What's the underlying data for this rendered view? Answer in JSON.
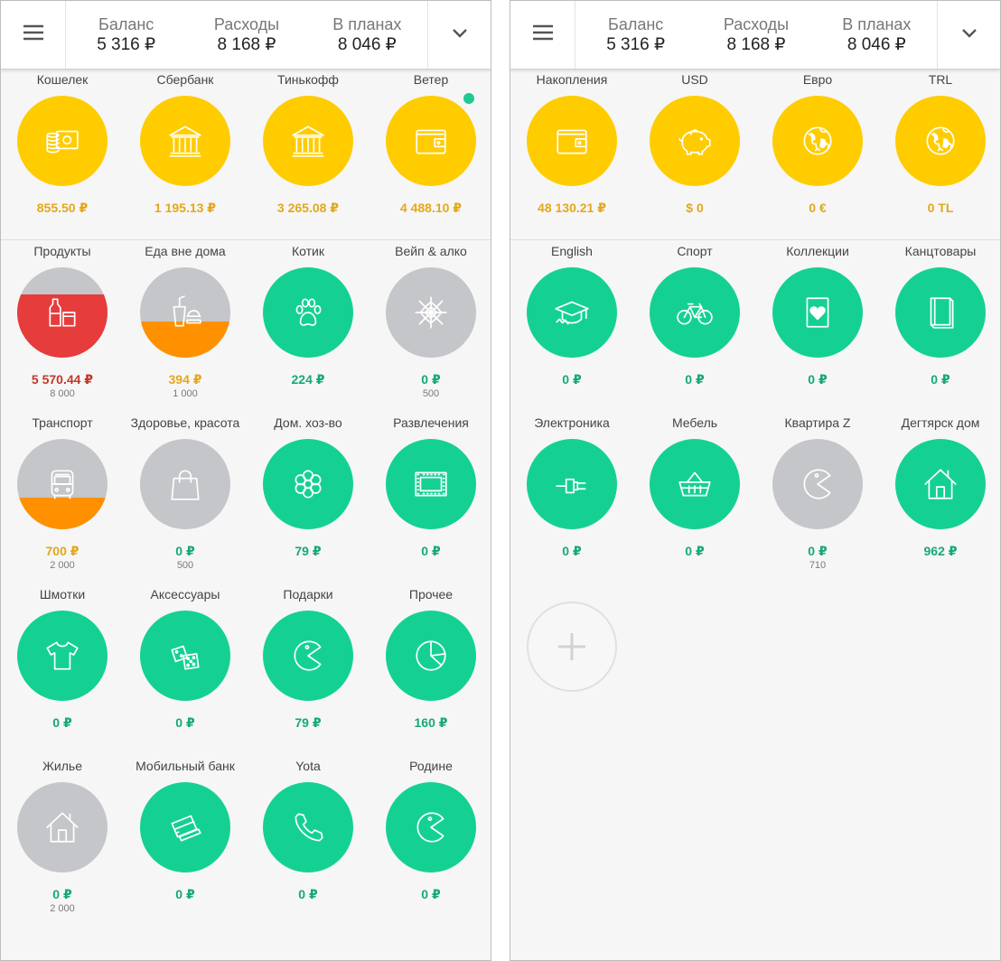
{
  "colors": {
    "yellow": "#ffcc00",
    "green": "#14d193",
    "gray": "#c4c6ca",
    "red": "#e63c3c",
    "orange": "#ff9000",
    "text_yellow": "#e3a81b",
    "text_green": "#16a879",
    "text_red": "#c0392b"
  },
  "screens": [
    {
      "header": {
        "stats": [
          {
            "label": "Баланс",
            "value": "5 316 ₽"
          },
          {
            "label": "Расходы",
            "value": "8 168 ₽"
          },
          {
            "label": "В планах",
            "value": "8 046 ₽"
          }
        ]
      },
      "accounts": [
        {
          "name": "Кошелек",
          "icon": "cash-icon",
          "amount": "855.50 ₽"
        },
        {
          "name": "Сбербанк",
          "icon": "bank-icon",
          "amount": "1 195.13 ₽"
        },
        {
          "name": "Тинькофф",
          "icon": "bank-icon",
          "amount": "3 265.08 ₽"
        },
        {
          "name": "Ветер",
          "icon": "wallet-icon",
          "amount": "4 488.10 ₽",
          "dot": true
        }
      ],
      "categories": [
        {
          "name": "Продукты",
          "icon": "groceries-icon",
          "color": "gray",
          "fill": "red",
          "fill_pct": 70,
          "amount": "5 570.44 ₽",
          "amount_color": "text_red",
          "limit": "8 000"
        },
        {
          "name": "Еда вне дома",
          "icon": "fastfood-icon",
          "color": "gray",
          "fill": "orange",
          "fill_pct": 40,
          "amount": "394 ₽",
          "amount_color": "text_yellow",
          "limit": "1 000"
        },
        {
          "name": "Котик",
          "icon": "paw-icon",
          "color": "green",
          "amount": "224 ₽",
          "amount_color": "text_green"
        },
        {
          "name": "Вейп & алко",
          "icon": "spiderweb-icon",
          "color": "gray",
          "amount": "0 ₽",
          "amount_color": "text_green",
          "limit": "500"
        },
        {
          "name": "Транспорт",
          "icon": "bus-icon",
          "color": "gray",
          "fill": "orange",
          "fill_pct": 35,
          "amount": "700 ₽",
          "amount_color": "text_yellow",
          "limit": "2 000"
        },
        {
          "name": "Здоровье, красота",
          "icon": "shopping-bag-icon",
          "color": "gray",
          "amount": "0 ₽",
          "amount_color": "text_green",
          "limit": "500"
        },
        {
          "name": "Дом. хоз-во",
          "icon": "flower-icon",
          "color": "green",
          "amount": "79 ₽",
          "amount_color": "text_green"
        },
        {
          "name": "Развлечения",
          "icon": "film-icon",
          "color": "green",
          "amount": "0 ₽",
          "amount_color": "text_green"
        },
        {
          "name": "Шмотки",
          "icon": "tshirt-icon",
          "color": "green",
          "amount": "0 ₽",
          "amount_color": "text_green"
        },
        {
          "name": "Аксессуары",
          "icon": "dice-icon",
          "color": "green",
          "amount": "0 ₽",
          "amount_color": "text_green"
        },
        {
          "name": "Подарки",
          "icon": "pacman-icon",
          "color": "green",
          "amount": "79 ₽",
          "amount_color": "text_green"
        },
        {
          "name": "Прочее",
          "icon": "pie-chart-icon",
          "color": "green",
          "amount": "160 ₽",
          "amount_color": "text_green"
        },
        {
          "name": "Жилье",
          "icon": "house-icon",
          "color": "gray",
          "amount": "0 ₽",
          "amount_color": "text_green",
          "limit": "2 000"
        },
        {
          "name": "Мобильный банк",
          "icon": "credit-cards-icon",
          "color": "green",
          "amount": "0 ₽",
          "amount_color": "text_green"
        },
        {
          "name": "Yota",
          "icon": "phone-icon",
          "color": "green",
          "amount": "0 ₽",
          "amount_color": "text_green"
        },
        {
          "name": "Родине",
          "icon": "pacman-icon",
          "color": "green",
          "amount": "0 ₽",
          "amount_color": "text_green"
        }
      ]
    },
    {
      "header": {
        "stats": [
          {
            "label": "Баланс",
            "value": "5 316 ₽"
          },
          {
            "label": "Расходы",
            "value": "8 168 ₽"
          },
          {
            "label": "В планах",
            "value": "8 046 ₽"
          }
        ]
      },
      "accounts": [
        {
          "name": "Накопления",
          "icon": "wallet-icon",
          "amount": "48 130.21 ₽"
        },
        {
          "name": "USD",
          "icon": "piggy-bank-icon",
          "amount": "$ 0"
        },
        {
          "name": "Евро",
          "icon": "globe-icon",
          "amount": "0 €"
        },
        {
          "name": "TRL",
          "icon": "globe-icon",
          "amount": "0 TL"
        }
      ],
      "categories": [
        {
          "name": "English",
          "icon": "graduation-cap-icon",
          "color": "green",
          "amount": "0 ₽",
          "amount_color": "text_green"
        },
        {
          "name": "Спорт",
          "icon": "bicycle-icon",
          "color": "green",
          "amount": "0 ₽",
          "amount_color": "text_green"
        },
        {
          "name": "Коллекции",
          "icon": "heart-card-icon",
          "color": "green",
          "amount": "0 ₽",
          "amount_color": "text_green"
        },
        {
          "name": "Канцтовары",
          "icon": "book-icon",
          "color": "green",
          "amount": "0 ₽",
          "amount_color": "text_green"
        },
        {
          "name": "Электроника",
          "icon": "plug-icon",
          "color": "green",
          "amount": "0 ₽",
          "amount_color": "text_green"
        },
        {
          "name": "Мебель",
          "icon": "basket-icon",
          "color": "green",
          "amount": "0 ₽",
          "amount_color": "text_green"
        },
        {
          "name": "Квартира Z",
          "icon": "pacman-icon",
          "color": "gray",
          "amount": "0 ₽",
          "amount_color": "text_green",
          "limit": "710"
        },
        {
          "name": "Дегтярск дом",
          "icon": "house-icon",
          "color": "green",
          "amount": "962 ₽",
          "amount_color": "text_green"
        }
      ],
      "add_button": {
        "icon": "plus-icon"
      }
    }
  ]
}
